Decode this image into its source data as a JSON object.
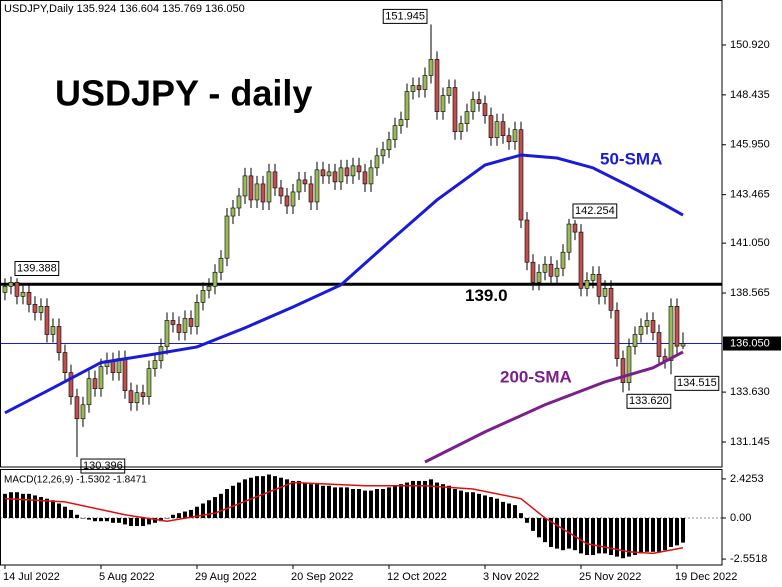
{
  "chart_data": {
    "type": "candlestick",
    "header": "USDJPY,Daily  135.924 136.604 135.769 136.050",
    "title": "USDJPY - daily",
    "up_color": "#9bbb59",
    "down_color": "#c0504d",
    "xlim": [
      -0.83,
      119.5
    ],
    "xticks": [
      {
        "value": 0,
        "label": "14 Jul 2022"
      },
      {
        "value": 16,
        "label": "5 Aug 2022"
      },
      {
        "value": 32,
        "label": "29 Aug 2022"
      },
      {
        "value": 48,
        "label": "20 Sep 2022"
      },
      {
        "value": 64,
        "label": "12 Oct 2022"
      },
      {
        "value": 80,
        "label": "3 Nov 2022"
      },
      {
        "value": 96,
        "label": "25 Nov 2022"
      },
      {
        "value": 112,
        "label": "19 Dec 2022"
      }
    ],
    "ylim": [
      129.9,
      153.16
    ],
    "yticks": [
      {
        "value": 150.92,
        "label": "150.920"
      },
      148.435,
      {
        "value": 145.95,
        "label": "145.950"
      },
      143.465,
      {
        "value": 141.05,
        "label": "141.050"
      },
      138.565,
      {
        "value": 133.63,
        "label": "133.630"
      },
      131.145
    ],
    "open": [
      138.6,
      138.9,
      139.1,
      138.4,
      138.6,
      138.0,
      137.6,
      137.9,
      136.5,
      136.9,
      135.6,
      134.6,
      133.4,
      132.3,
      133.0,
      134.3,
      133.8,
      134.9,
      135.2,
      134.6,
      135.3,
      133.7,
      133.1,
      133.6,
      133.4,
      134.8,
      135.2,
      135.9,
      137.2,
      137.0,
      136.6,
      137.3,
      136.9,
      138.1,
      138.7,
      138.9,
      139.6,
      140.3,
      142.4,
      142.8,
      143.4,
      144.4,
      143.2,
      144.0,
      143.1,
      144.6,
      143.8,
      143.4,
      142.9,
      143.6,
      144.2,
      144.0,
      143.1,
      144.7,
      144.4,
      144.6,
      144.1,
      144.8,
      144.4,
      144.9,
      144.6,
      144.0,
      144.8,
      145.4,
      145.7,
      146.2,
      146.9,
      147.2,
      148.6,
      148.9,
      148.7,
      149.4,
      150.2,
      147.6,
      148.4,
      148.8,
      146.6,
      147.0,
      147.6,
      148.2,
      148.0,
      147.4,
      146.3,
      147.1,
      146.4,
      146.1,
      146.7,
      142.2,
      140.1,
      139.1,
      139.6,
      140.0,
      139.4,
      139.8,
      140.6,
      142.0,
      141.6,
      138.8,
      139.2,
      139.5,
      138.4,
      138.8,
      137.7,
      135.3,
      134.1,
      135.9,
      136.5,
      136.9,
      137.2,
      136.6,
      135.4,
      135.2,
      137.9,
      135.924
    ],
    "high": [
      139.3,
      139.388,
      139.3,
      139.0,
      139.0,
      138.4,
      138.3,
      138.3,
      137.3,
      137.3,
      136.0,
      135.0,
      133.8,
      133.4,
      134.7,
      134.7,
      135.3,
      135.6,
      135.6,
      135.7,
      135.7,
      134.1,
      134.0,
      134.0,
      135.2,
      135.6,
      136.3,
      137.6,
      137.6,
      137.4,
      137.7,
      137.7,
      138.5,
      139.1,
      139.3,
      140.0,
      140.7,
      142.8,
      143.2,
      143.8,
      144.8,
      144.8,
      144.4,
      144.4,
      145.0,
      145.0,
      144.2,
      143.8,
      144.0,
      144.6,
      144.6,
      144.4,
      145.1,
      145.1,
      145.0,
      145.0,
      145.2,
      145.2,
      145.3,
      145.3,
      145.0,
      145.2,
      145.8,
      146.1,
      146.6,
      147.3,
      147.6,
      149.0,
      149.3,
      149.3,
      149.8,
      151.945,
      150.6,
      148.8,
      149.2,
      149.2,
      147.4,
      148.0,
      148.6,
      148.6,
      148.4,
      147.8,
      147.5,
      147.5,
      146.8,
      147.1,
      147.1,
      142.6,
      140.5,
      140.0,
      140.4,
      140.4,
      140.2,
      141.0,
      142.254,
      142.2,
      142.0,
      139.6,
      139.9,
      139.9,
      139.2,
      139.2,
      138.1,
      135.7,
      136.3,
      136.9,
      137.3,
      137.6,
      137.6,
      137.0,
      135.8,
      138.3,
      138.3,
      136.604
    ],
    "low": [
      138.2,
      138.5,
      138.0,
      138.0,
      137.6,
      137.2,
      137.2,
      136.1,
      136.1,
      135.2,
      134.2,
      133.0,
      130.396,
      131.9,
      132.6,
      133.4,
      133.4,
      134.5,
      134.2,
      134.2,
      133.3,
      132.7,
      132.7,
      133.0,
      133.0,
      134.4,
      134.8,
      135.5,
      136.6,
      136.2,
      136.2,
      136.5,
      136.5,
      137.7,
      138.3,
      138.5,
      139.2,
      139.9,
      142.0,
      142.4,
      143.0,
      142.8,
      142.8,
      142.7,
      142.7,
      143.4,
      143.0,
      142.5,
      142.5,
      143.2,
      143.6,
      142.7,
      142.7,
      144.0,
      144.0,
      143.7,
      143.7,
      144.0,
      144.0,
      144.2,
      143.6,
      143.6,
      144.4,
      145.0,
      145.3,
      145.8,
      146.5,
      146.8,
      148.2,
      148.3,
      148.3,
      149.0,
      147.2,
      147.2,
      148.0,
      146.2,
      146.2,
      146.6,
      147.2,
      147.6,
      147.0,
      145.9,
      145.9,
      146.0,
      145.7,
      145.7,
      141.8,
      139.7,
      138.7,
      138.7,
      139.2,
      139.0,
      139.0,
      139.4,
      140.2,
      141.2,
      138.4,
      138.4,
      138.8,
      138.0,
      138.0,
      137.3,
      134.9,
      133.62,
      133.7,
      135.5,
      136.1,
      136.5,
      136.2,
      135.0,
      134.8,
      134.515,
      135.5,
      135.769
    ],
    "close": [
      138.9,
      139.1,
      138.4,
      138.6,
      138.0,
      137.6,
      137.9,
      136.5,
      136.9,
      135.6,
      134.6,
      133.4,
      132.3,
      133.0,
      134.3,
      133.8,
      134.9,
      135.2,
      134.6,
      135.3,
      133.7,
      133.1,
      133.6,
      133.4,
      134.8,
      135.2,
      135.9,
      137.2,
      137.0,
      136.6,
      137.3,
      136.9,
      138.1,
      138.7,
      138.9,
      139.6,
      140.3,
      142.4,
      142.8,
      143.4,
      144.4,
      143.2,
      144.0,
      143.1,
      144.6,
      143.8,
      143.4,
      142.9,
      143.6,
      144.2,
      144.0,
      143.1,
      144.7,
      144.4,
      144.6,
      144.1,
      144.8,
      144.4,
      144.9,
      144.6,
      144.0,
      144.8,
      145.4,
      145.7,
      146.2,
      146.9,
      147.2,
      148.6,
      148.9,
      148.7,
      149.4,
      150.2,
      147.6,
      148.4,
      148.8,
      146.6,
      147.0,
      147.6,
      148.2,
      148.0,
      147.4,
      146.3,
      147.1,
      146.4,
      146.1,
      146.7,
      142.2,
      140.1,
      139.1,
      139.6,
      140.0,
      139.4,
      139.8,
      140.6,
      142.0,
      141.6,
      138.8,
      139.2,
      139.5,
      138.4,
      138.8,
      137.7,
      135.3,
      134.1,
      135.9,
      136.5,
      136.9,
      137.2,
      136.6,
      135.4,
      135.2,
      137.9,
      135.92,
      136.05
    ],
    "current_price": {
      "value": 136.05,
      "label": "136.050",
      "color": "#1a1adb"
    },
    "level": {
      "value": 139,
      "label": "139.0",
      "color": "#000000"
    },
    "price_labels": [
      {
        "value": 151.945,
        "label": "151.945"
      },
      {
        "value": 142.254,
        "label": "142.254"
      },
      {
        "value": 139.388,
        "label": "139.388"
      },
      {
        "value": 130.396,
        "label": "130.396"
      },
      {
        "value": 133.62,
        "label": "133.620"
      },
      {
        "value": 134.515,
        "label": "134.515"
      }
    ],
    "sma": [
      {
        "name": "50-SMA",
        "color": "#1a1adb",
        "x": [
          0,
          8,
          16,
          24,
          32,
          40,
          48,
          56,
          64,
          72,
          80,
          86,
          92,
          98,
          104,
          110,
          113
        ],
        "values": [
          132.6,
          133.84,
          135.1,
          135.48,
          135.88,
          136.83,
          137.87,
          138.97,
          141.11,
          143.2,
          144.94,
          145.44,
          145.29,
          144.8,
          143.9,
          142.95,
          142.45
        ]
      },
      {
        "name": "200-SMA",
        "color": "#7b1f8c",
        "x": [
          70,
          80,
          90,
          100,
          108,
          113
        ],
        "values": [
          130.15,
          131.65,
          133.0,
          134.14,
          134.84,
          135.63
        ]
      }
    ],
    "macd": {
      "label": "MACD(12,26,9) -1.5302 -1.8471",
      "color": "#000000",
      "ylim": [
        -2.92,
        2.98
      ],
      "yticks": [
        2.4253,
        {
          "value": 0,
          "label": "0.00"
        },
        -2.5518
      ],
      "values": [
        1.5,
        1.6,
        1.6,
        1.5,
        1.5,
        1.4,
        1.3,
        1.2,
        1.1,
        0.9,
        0.7,
        0.5,
        0.2,
        0.0,
        -0.1,
        -0.2,
        -0.2,
        -0.2,
        -0.3,
        -0.3,
        -0.4,
        -0.5,
        -0.5,
        -0.5,
        -0.4,
        -0.3,
        -0.2,
        0.0,
        0.2,
        0.3,
        0.4,
        0.5,
        0.7,
        0.9,
        1.1,
        1.3,
        1.5,
        1.8,
        2.0,
        2.2,
        2.4,
        2.5,
        2.6,
        2.6,
        2.7,
        2.6,
        2.5,
        2.4,
        2.3,
        2.3,
        2.2,
        2.1,
        2.1,
        2.0,
        2.0,
        1.9,
        1.9,
        1.9,
        1.8,
        1.8,
        1.7,
        1.7,
        1.8,
        1.8,
        1.9,
        2.0,
        2.1,
        2.2,
        2.3,
        2.3,
        2.3,
        2.4,
        2.2,
        2.1,
        2.0,
        1.8,
        1.7,
        1.6,
        1.6,
        1.5,
        1.4,
        1.3,
        1.2,
        1.0,
        0.9,
        0.8,
        0.3,
        -0.3,
        -0.8,
        -1.2,
        -1.5,
        -1.8,
        -1.9,
        -2.0,
        -1.9,
        -2.0,
        -2.2,
        -2.3,
        -2.3,
        -2.2,
        -2.2,
        -2.3,
        -2.4,
        -2.5,
        -2.4,
        -2.3,
        -2.2,
        -2.1,
        -2.1,
        -2.1,
        -2.0,
        -1.8,
        -1.7,
        -1.5302
      ],
      "signal": {
        "color": "#e01010",
        "x": [
          0,
          10,
          20,
          27,
          35,
          48,
          60,
          70,
          78,
          86,
          90,
          97,
          104,
          108,
          113
        ],
        "values": [
          1.2,
          1.0,
          0.2,
          -0.2,
          0.3,
          2.2,
          2.0,
          2.0,
          1.8,
          1.2,
          0.0,
          -1.6,
          -2.1,
          -2.2,
          -1.8471
        ]
      }
    }
  }
}
